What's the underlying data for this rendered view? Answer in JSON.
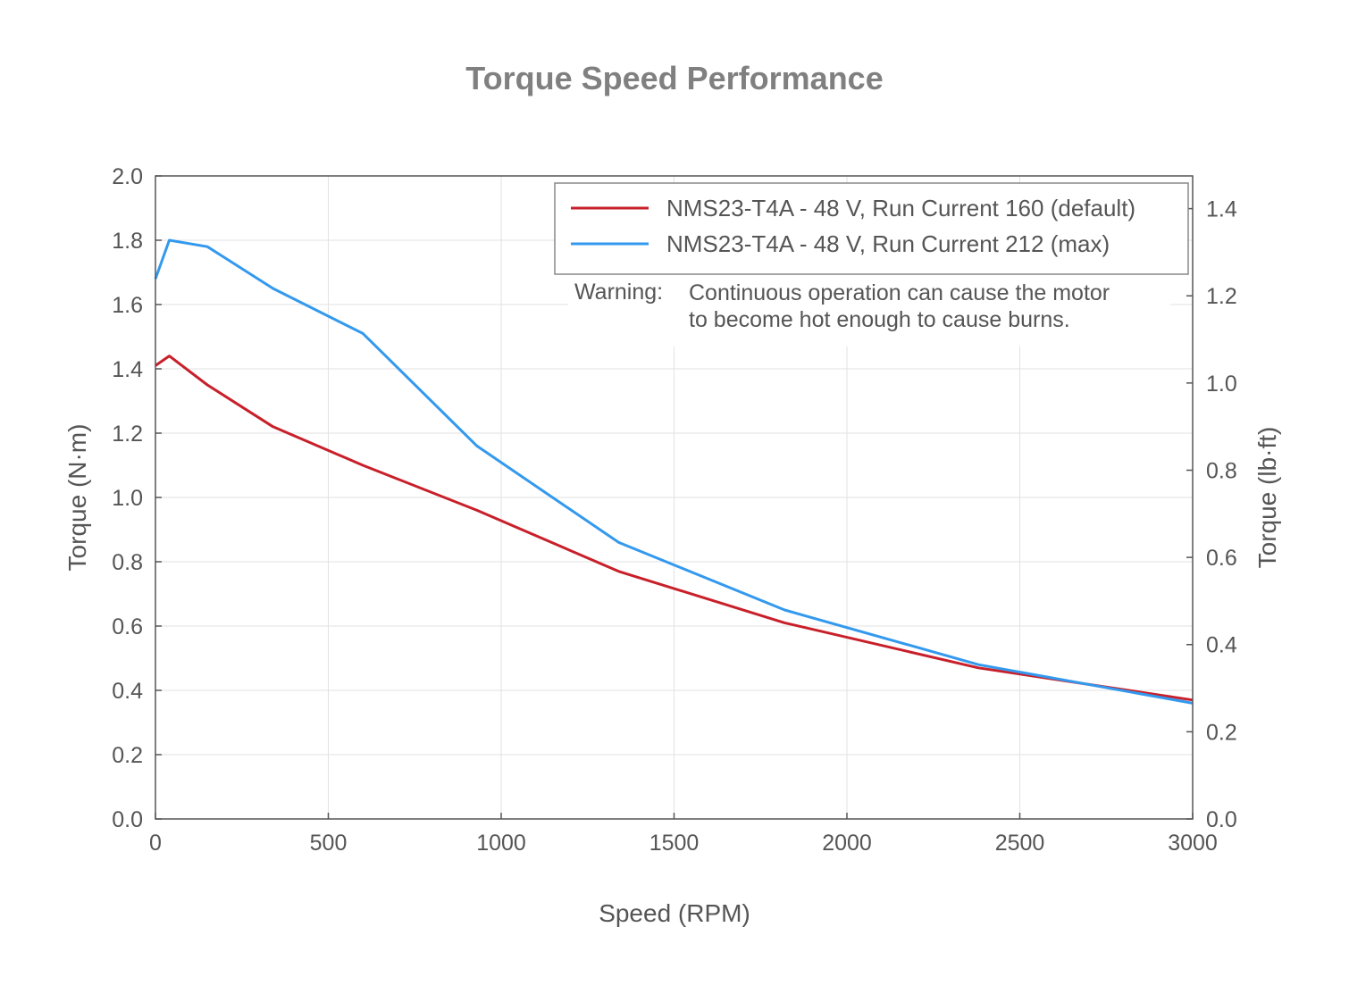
{
  "chart_data": {
    "type": "line",
    "title": "Torque Speed Performance",
    "xlabel": "Speed (RPM)",
    "ylabel": "Torque (N·m)",
    "y2label": "Torque (lb·ft)",
    "xlim": [
      0,
      3000
    ],
    "ylim": [
      0,
      2.0
    ],
    "y2lim": [
      0,
      1.475
    ],
    "x_ticks": [
      "0",
      "500",
      "1000",
      "1500",
      "2000",
      "2500",
      "3000"
    ],
    "y_ticks": [
      "0.0",
      "0.2",
      "0.4",
      "0.6",
      "0.8",
      "1.0",
      "1.2",
      "1.4",
      "1.6",
      "1.8",
      "2.0"
    ],
    "y2_ticks": [
      "0.0",
      "0.2",
      "0.4",
      "0.6",
      "0.8",
      "1.0",
      "1.2",
      "1.4"
    ],
    "grid": true,
    "legend_position": "top-right",
    "series": [
      {
        "name": "NMS23-T4A - 48 V, Run Current 160 (default)",
        "color": "#c8202a",
        "x": [
          0,
          40,
          150,
          340,
          600,
          930,
          1340,
          1820,
          2380,
          3000
        ],
        "y": [
          1.41,
          1.44,
          1.35,
          1.22,
          1.1,
          0.96,
          0.77,
          0.61,
          0.47,
          0.37
        ]
      },
      {
        "name": "NMS23-T4A - 48 V, Run Current 212 (max)",
        "color": "#3399ee",
        "x": [
          0,
          40,
          150,
          340,
          600,
          930,
          1340,
          1820,
          2380,
          3000
        ],
        "y": [
          1.68,
          1.8,
          1.78,
          1.65,
          1.51,
          1.16,
          0.86,
          0.65,
          0.48,
          0.36
        ]
      }
    ],
    "annotation": {
      "label": "Warning:",
      "lines": [
        "Continuous operation can cause the motor",
        "to become hot enough to cause burns."
      ]
    }
  }
}
